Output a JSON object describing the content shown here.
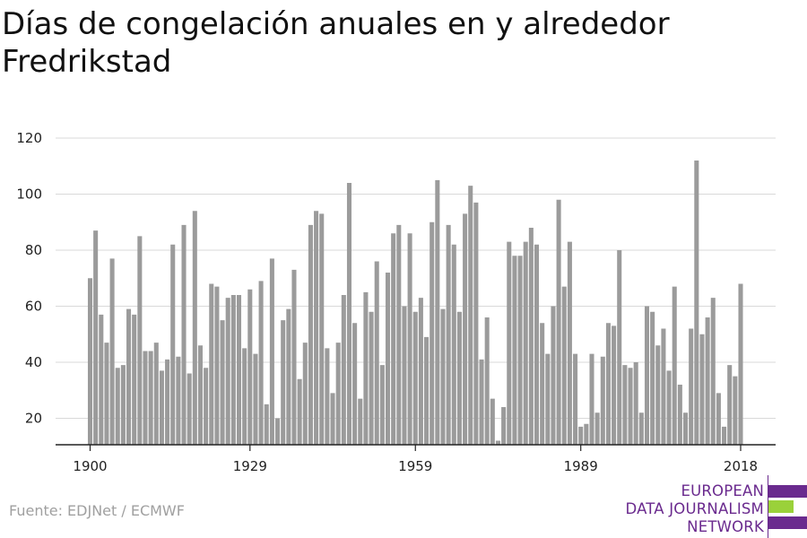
{
  "chart_data": {
    "type": "bar",
    "title": "Días de congelación anuales en y alrededor Fredrikstad",
    "xlabel": "",
    "ylabel": "",
    "ylim": [
      10,
      120
    ],
    "yticks": [
      20,
      40,
      60,
      80,
      100,
      120
    ],
    "xticks": [
      "1900",
      "1929",
      "1959",
      "1989",
      "2018"
    ],
    "grid": true,
    "bar_color": "#9b9b9b",
    "x": [
      1900,
      1901,
      1902,
      1903,
      1904,
      1905,
      1906,
      1907,
      1908,
      1909,
      1910,
      1911,
      1912,
      1913,
      1914,
      1915,
      1916,
      1917,
      1918,
      1919,
      1920,
      1921,
      1922,
      1923,
      1924,
      1925,
      1926,
      1927,
      1928,
      1929,
      1930,
      1931,
      1932,
      1933,
      1934,
      1935,
      1936,
      1937,
      1938,
      1939,
      1940,
      1941,
      1942,
      1943,
      1944,
      1945,
      1946,
      1947,
      1948,
      1949,
      1950,
      1951,
      1952,
      1953,
      1954,
      1955,
      1956,
      1957,
      1958,
      1959,
      1960,
      1961,
      1962,
      1963,
      1964,
      1965,
      1966,
      1967,
      1968,
      1969,
      1970,
      1971,
      1972,
      1973,
      1974,
      1975,
      1976,
      1977,
      1978,
      1979,
      1980,
      1981,
      1982,
      1983,
      1984,
      1985,
      1986,
      1987,
      1988,
      1989,
      1990,
      1991,
      1992,
      1993,
      1994,
      1995,
      1996,
      1997,
      1998,
      1999,
      2000,
      2001,
      2002,
      2003,
      2004,
      2005,
      2006,
      2007,
      2008,
      2009,
      2010,
      2011,
      2012,
      2013,
      2014,
      2015,
      2016,
      2017,
      2018
    ],
    "values": [
      70,
      87,
      57,
      47,
      77,
      38,
      39,
      59,
      57,
      85,
      44,
      44,
      47,
      37,
      41,
      82,
      42,
      89,
      36,
      94,
      46,
      38,
      68,
      67,
      55,
      63,
      64,
      64,
      45,
      66,
      43,
      69,
      25,
      77,
      20,
      55,
      59,
      73,
      34,
      47,
      89,
      94,
      93,
      45,
      29,
      47,
      64,
      104,
      54,
      27,
      65,
      58,
      76,
      39,
      72,
      86,
      89,
      60,
      86,
      58,
      63,
      49,
      90,
      105,
      59,
      89,
      82,
      58,
      93,
      103,
      97,
      41,
      56,
      27,
      12,
      24,
      83,
      78,
      78,
      83,
      88,
      82,
      54,
      43,
      60,
      98,
      67,
      83,
      43,
      17,
      18,
      43,
      22,
      42,
      54,
      53,
      80,
      39,
      38,
      40,
      22,
      60,
      58,
      46,
      52,
      37,
      67,
      32,
      22,
      52,
      112,
      50,
      56,
      63,
      29,
      17,
      39,
      35,
      68
    ]
  },
  "source": "Fuente: EDJNet / ECMWF",
  "logo": {
    "line1": "EUROPEAN",
    "line2": "DATA JOURNALISM",
    "line3": "NETWORK",
    "purple": "#6a2a8e",
    "green": "#9ad13a"
  }
}
